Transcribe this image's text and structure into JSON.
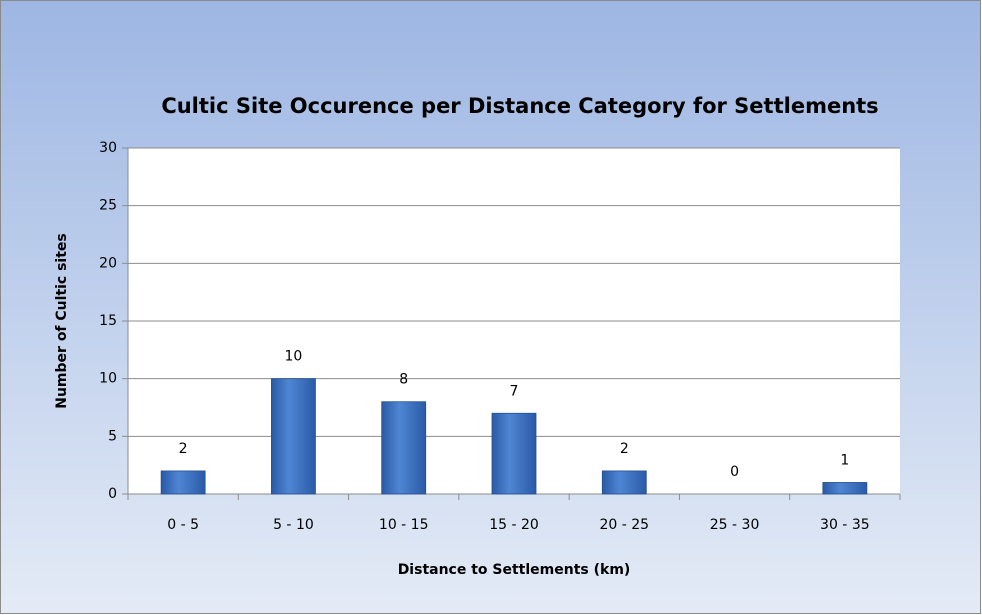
{
  "chart_data": {
    "type": "bar",
    "title": "Cultic Site Occurence per Distance Category for Settlements",
    "x_label": "Distance to Settlements (km)",
    "y_label": "Number of Cultic sites",
    "categories": [
      "0 - 5",
      "5 - 10",
      "10 - 15",
      "15 - 20",
      "20 - 25",
      "25 - 30",
      "30 - 35"
    ],
    "values": [
      2,
      10,
      8,
      7,
      2,
      0,
      1
    ],
    "color": "#3a6fc0",
    "ylim": [
      0,
      30
    ],
    "yticks": [
      0,
      5,
      10,
      15,
      20,
      25,
      30
    ],
    "grid": true
  }
}
